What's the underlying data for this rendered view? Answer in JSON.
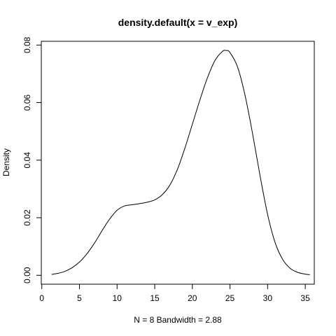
{
  "chart_data": {
    "type": "line",
    "title": "density.default(x = v_exp)",
    "xlabel": "N = 8   Bandwidth = 2.88",
    "ylabel": "Density",
    "xlim": [
      -0.07,
      36.2
    ],
    "ylim": [
      -0.0031,
      0.0813
    ],
    "x_ticks": [
      0,
      5,
      10,
      15,
      20,
      25,
      30,
      35
    ],
    "x_tick_labels": [
      "0",
      "5",
      "10",
      "15",
      "20",
      "25",
      "30",
      "35"
    ],
    "y_ticks": [
      0.0,
      0.02,
      0.04,
      0.06,
      0.08
    ],
    "y_tick_labels": [
      "0.00",
      "0.02",
      "0.04",
      "0.06",
      "0.08"
    ],
    "grid": false,
    "legend": "none",
    "series": [
      {
        "x": [
          1.3,
          2,
          3,
          4,
          5,
          6,
          7,
          8,
          9,
          10,
          11,
          12,
          13,
          14,
          15,
          16,
          17,
          18,
          19,
          20,
          21,
          22,
          23,
          24,
          24.5,
          25,
          26,
          27,
          28,
          29,
          30,
          31,
          32,
          33,
          34,
          35,
          35.6
        ],
        "y": [
          0.0003,
          0.0006,
          0.0013,
          0.0026,
          0.0046,
          0.0075,
          0.0112,
          0.0155,
          0.0195,
          0.0226,
          0.0241,
          0.0245,
          0.0249,
          0.0254,
          0.0262,
          0.028,
          0.0313,
          0.0367,
          0.0441,
          0.0525,
          0.0609,
          0.0686,
          0.0746,
          0.0778,
          0.0781,
          0.0774,
          0.0724,
          0.0625,
          0.0492,
          0.0345,
          0.0211,
          0.0113,
          0.0055,
          0.0024,
          0.001,
          0.0004,
          0.0002
        ]
      }
    ]
  }
}
